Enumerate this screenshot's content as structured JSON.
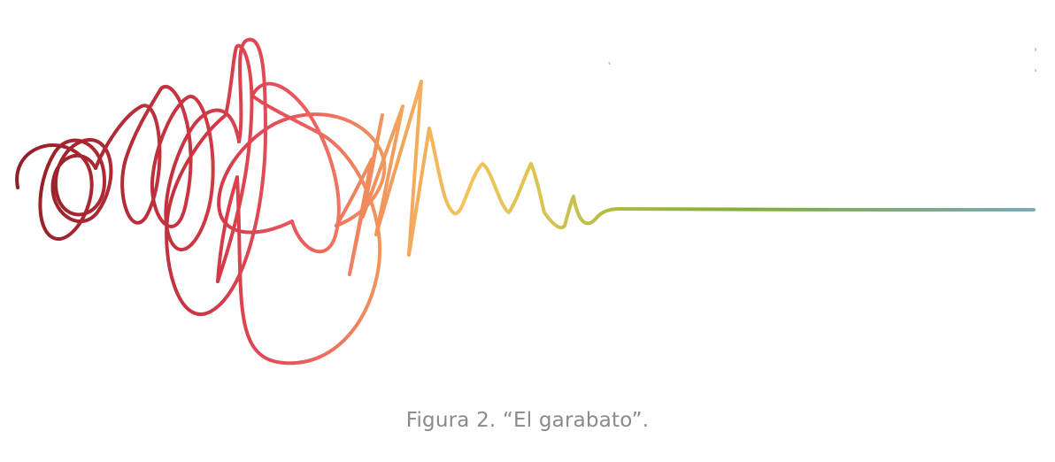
{
  "figure": {
    "caption": "Figura 2. “El garabato”."
  },
  "colors": {
    "dark_red": "#8e1f26",
    "crimson": "#c9343f",
    "coral": "#e9545e",
    "salmon": "#ef7f5f",
    "orange": "#f3a45c",
    "yellow": "#f4c35a",
    "olive": "#c9c04b",
    "green": "#7fae3d",
    "teal": "#7aa9bb",
    "caption_gray": "#8a8a8a"
  }
}
